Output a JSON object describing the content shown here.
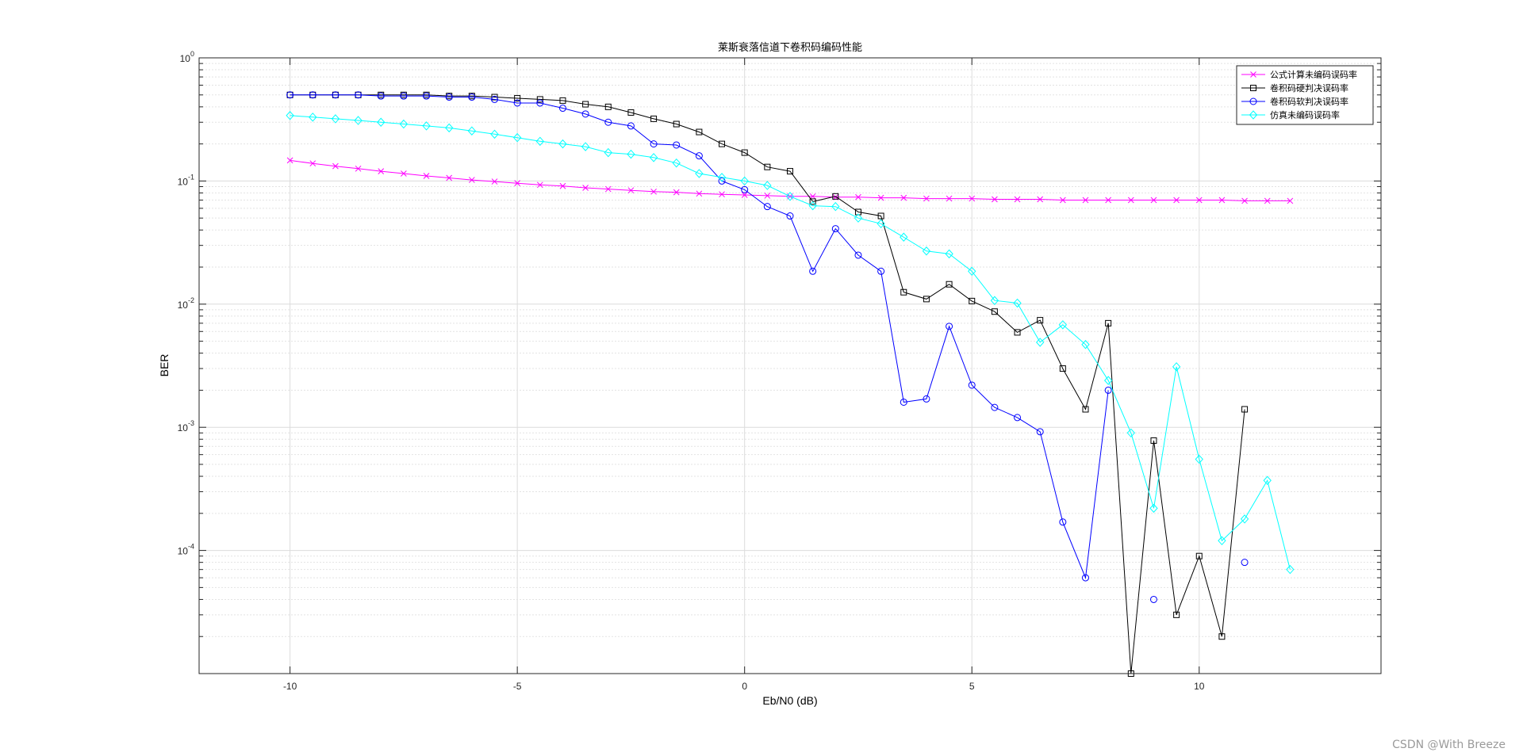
{
  "chart_data": {
    "type": "line",
    "title": "莱斯衰落信道下卷积码编码性能",
    "xlabel": "Eb/N0 (dB)",
    "ylabel": "BER",
    "xlim": [
      -12,
      14
    ],
    "ylim": [
      1e-05,
      1
    ],
    "y_scale": "log",
    "grid": true,
    "minor_grid": true,
    "legend_position": "top-right",
    "x_ticks": [
      -10,
      -5,
      0,
      5,
      10
    ],
    "x_tick_labels": [
      "-10",
      "-5",
      "0",
      "5",
      "10"
    ],
    "y_ticks": [
      1,
      0.1,
      0.01,
      0.001,
      0.0001
    ],
    "y_tick_labels": [
      {
        "base": "10",
        "exp": "0"
      },
      {
        "base": "10",
        "exp": "-1"
      },
      {
        "base": "10",
        "exp": "-2"
      },
      {
        "base": "10",
        "exp": "-3"
      },
      {
        "base": "10",
        "exp": "-4"
      }
    ],
    "x": [
      -10,
      -9.5,
      -9,
      -8.5,
      -8,
      -7.5,
      -7,
      -6.5,
      -6,
      -5.5,
      -5,
      -4.5,
      -4,
      -3.5,
      -3,
      -2.5,
      -2,
      -1.5,
      -1,
      -0.5,
      0,
      0.5,
      1,
      1.5,
      2,
      2.5,
      3,
      3.5,
      4,
      4.5,
      5,
      5.5,
      6,
      6.5,
      7,
      7.5,
      8,
      8.5,
      9,
      9.5,
      10,
      10.5,
      11,
      11.5,
      12
    ],
    "series": [
      {
        "name": "公式计算未编码误码率",
        "color": "#ff00ff",
        "marker": "x",
        "values": [
          0.147,
          0.139,
          0.132,
          0.126,
          0.12,
          0.115,
          0.11,
          0.106,
          0.102,
          0.099,
          0.096,
          0.093,
          0.091,
          0.088,
          0.086,
          0.084,
          0.082,
          0.081,
          0.079,
          0.078,
          0.077,
          0.076,
          0.075,
          0.075,
          0.074,
          0.074,
          0.073,
          0.073,
          0.072,
          0.072,
          0.072,
          0.071,
          0.071,
          0.071,
          0.07,
          0.07,
          0.07,
          0.07,
          0.07,
          0.07,
          0.07,
          0.07,
          0.069,
          0.069,
          0.069
        ]
      },
      {
        "name": "卷积码硬判决误码率",
        "color": "#000000",
        "marker": "square",
        "values": [
          0.5,
          0.5,
          0.5,
          0.5,
          0.5,
          0.5,
          0.5,
          0.49,
          0.49,
          0.48,
          0.47,
          0.46,
          0.45,
          0.42,
          0.4,
          0.36,
          0.32,
          0.29,
          0.25,
          0.2,
          0.17,
          0.13,
          0.12,
          0.068,
          0.075,
          0.056,
          0.052,
          0.0125,
          0.011,
          0.0145,
          0.0106,
          0.0087,
          0.0059,
          0.0074,
          0.003,
          0.0014,
          0.007,
          1e-05,
          0.00078,
          3e-05,
          9e-05,
          2e-05,
          0.0014,
          null,
          null
        ]
      },
      {
        "name": "卷积码软判决误码率",
        "color": "#0000ff",
        "marker": "circle",
        "values": [
          0.5,
          0.5,
          0.5,
          0.5,
          0.49,
          0.49,
          0.49,
          0.48,
          0.48,
          0.46,
          0.43,
          0.43,
          0.39,
          0.35,
          0.3,
          0.28,
          0.2,
          0.196,
          0.16,
          0.1,
          0.085,
          0.062,
          0.052,
          0.0185,
          0.041,
          0.025,
          0.0185,
          0.0016,
          0.0017,
          0.0066,
          0.0022,
          0.00145,
          0.0012,
          0.00092,
          0.00017,
          6e-05,
          0.002,
          null,
          4e-05,
          null,
          null,
          null,
          8e-05,
          null,
          null
        ]
      },
      {
        "name": "仿真未编码误码率",
        "color": "#00ffff",
        "marker": "diamond",
        "values": [
          0.34,
          0.33,
          0.32,
          0.31,
          0.3,
          0.29,
          0.28,
          0.27,
          0.255,
          0.24,
          0.225,
          0.21,
          0.2,
          0.19,
          0.17,
          0.165,
          0.155,
          0.14,
          0.115,
          0.107,
          0.1,
          0.092,
          0.075,
          0.063,
          0.062,
          0.05,
          0.045,
          0.035,
          0.027,
          0.0256,
          0.0185,
          0.0107,
          0.0102,
          0.0049,
          0.0068,
          0.0047,
          0.0024,
          0.0009,
          0.00022,
          0.0031,
          0.00055,
          0.00012,
          0.00018,
          0.00037,
          7e-05
        ]
      }
    ]
  },
  "watermark": "CSDN @With Breeze"
}
